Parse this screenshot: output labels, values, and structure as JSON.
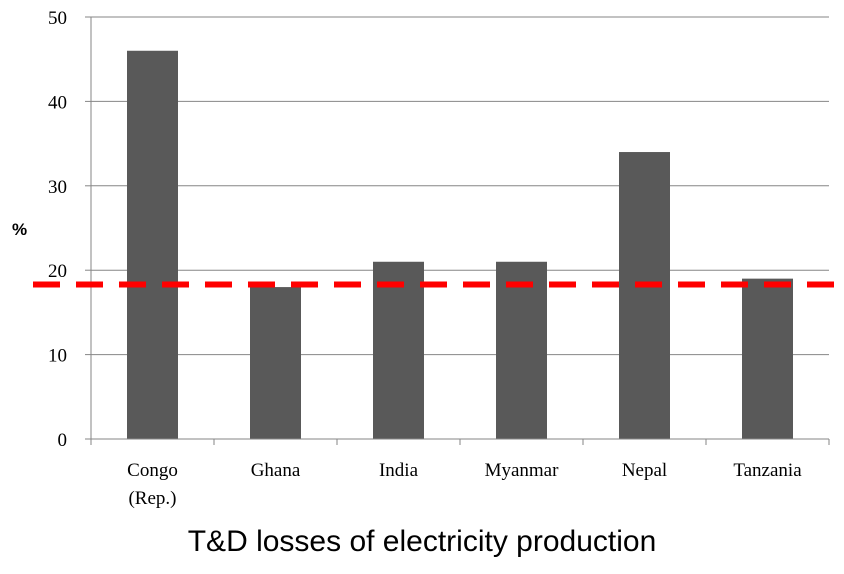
{
  "chart_data": {
    "type": "bar",
    "title": "T&D losses of electricity production",
    "ylabel": "%",
    "xlabel": "",
    "categories": [
      [
        "Congo",
        "(Rep.)"
      ],
      [
        "Ghana"
      ],
      [
        "India"
      ],
      [
        "Myanmar"
      ],
      [
        "Nepal"
      ],
      [
        "Tanzania"
      ]
    ],
    "values": [
      46,
      18,
      21,
      21,
      34,
      19
    ],
    "ylim": [
      0,
      50
    ],
    "yticks": [
      0,
      10,
      20,
      30,
      40,
      50
    ],
    "grid": true,
    "bar_color": "#595959",
    "reference_line": {
      "value": 18.3,
      "style": "dashed",
      "color": "#ff0000"
    }
  }
}
